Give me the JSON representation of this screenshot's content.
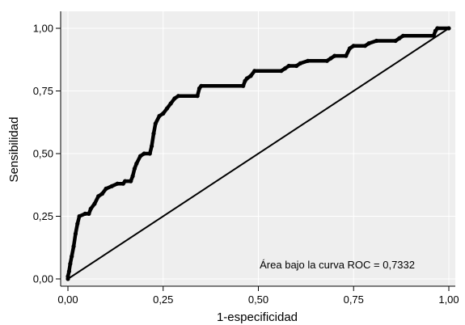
{
  "chart_data": {
    "type": "line",
    "title": "",
    "xlabel": "1-especificidad",
    "ylabel": "Sensibilidad",
    "xlim": [
      0,
      1
    ],
    "ylim": [
      0,
      1
    ],
    "grid": true,
    "x_ticks": [
      0,
      0.25,
      0.5,
      0.75,
      1
    ],
    "y_ticks": [
      0,
      0.25,
      0.5,
      0.75,
      1
    ],
    "x_tick_labels": [
      "0,00",
      "0,25",
      "0,50",
      "0,75",
      "1,00"
    ],
    "y_tick_labels": [
      "0,00",
      "0,25",
      "0,50",
      "0,75",
      "1,00"
    ],
    "annotation": "Área bajo la curva ROC = 0,7332",
    "colors": {
      "background": "#ffffff",
      "plot_area": "#eeeeee",
      "grid": "#ffffff",
      "line": "#000000"
    },
    "series": [
      {
        "points": [
          [
            0.0,
            0.0
          ],
          [
            0.0,
            0.01
          ],
          [
            0.003,
            0.03
          ],
          [
            0.006,
            0.06
          ],
          [
            0.01,
            0.09
          ],
          [
            0.015,
            0.13
          ],
          [
            0.02,
            0.18
          ],
          [
            0.025,
            0.22
          ],
          [
            0.03,
            0.25
          ],
          [
            0.045,
            0.26
          ],
          [
            0.055,
            0.26
          ],
          [
            0.06,
            0.28
          ],
          [
            0.07,
            0.3
          ],
          [
            0.08,
            0.33
          ],
          [
            0.09,
            0.34
          ],
          [
            0.1,
            0.36
          ],
          [
            0.115,
            0.37
          ],
          [
            0.13,
            0.38
          ],
          [
            0.145,
            0.38
          ],
          [
            0.15,
            0.39
          ],
          [
            0.165,
            0.39
          ],
          [
            0.17,
            0.41
          ],
          [
            0.175,
            0.44
          ],
          [
            0.18,
            0.46
          ],
          [
            0.19,
            0.49
          ],
          [
            0.2,
            0.5
          ],
          [
            0.215,
            0.5
          ],
          [
            0.22,
            0.53
          ],
          [
            0.225,
            0.58
          ],
          [
            0.23,
            0.62
          ],
          [
            0.24,
            0.65
          ],
          [
            0.25,
            0.66
          ],
          [
            0.26,
            0.68
          ],
          [
            0.27,
            0.7
          ],
          [
            0.28,
            0.72
          ],
          [
            0.29,
            0.73
          ],
          [
            0.34,
            0.73
          ],
          [
            0.345,
            0.76
          ],
          [
            0.35,
            0.77
          ],
          [
            0.46,
            0.77
          ],
          [
            0.465,
            0.79
          ],
          [
            0.47,
            0.8
          ],
          [
            0.48,
            0.81
          ],
          [
            0.49,
            0.83
          ],
          [
            0.56,
            0.83
          ],
          [
            0.57,
            0.84
          ],
          [
            0.58,
            0.85
          ],
          [
            0.6,
            0.85
          ],
          [
            0.61,
            0.86
          ],
          [
            0.63,
            0.87
          ],
          [
            0.68,
            0.87
          ],
          [
            0.69,
            0.88
          ],
          [
            0.7,
            0.89
          ],
          [
            0.73,
            0.89
          ],
          [
            0.74,
            0.92
          ],
          [
            0.75,
            0.93
          ],
          [
            0.78,
            0.93
          ],
          [
            0.79,
            0.94
          ],
          [
            0.81,
            0.95
          ],
          [
            0.86,
            0.95
          ],
          [
            0.87,
            0.96
          ],
          [
            0.88,
            0.97
          ],
          [
            0.96,
            0.97
          ],
          [
            0.965,
            0.99
          ],
          [
            0.97,
            1.0
          ],
          [
            1.0,
            1.0
          ]
        ]
      },
      {
        "points": [
          [
            0,
            0
          ],
          [
            1,
            1
          ]
        ]
      }
    ]
  }
}
